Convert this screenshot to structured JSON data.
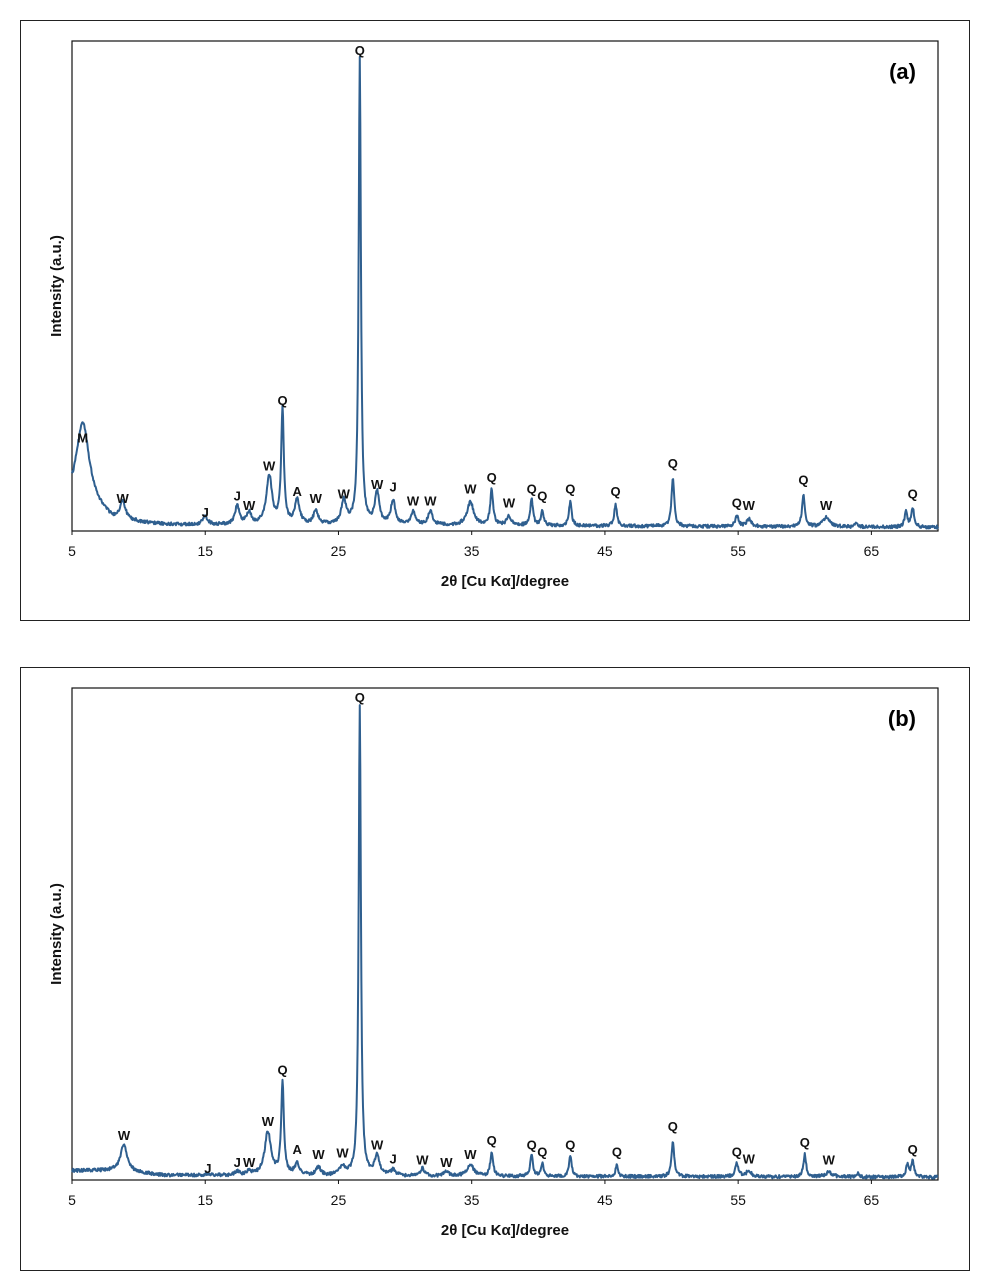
{
  "colors": {
    "pattern": "#2f5f8f",
    "axis": "#111111",
    "frame": "#222222"
  },
  "chart_data": [
    {
      "id": "a",
      "type": "line",
      "panel_label": "(a)",
      "xlabel": "2θ [Cu Kα]/degree",
      "ylabel": "Intensity (a.u.)",
      "xlim": [
        5,
        70
      ],
      "ylim": [
        0,
        105
      ],
      "xticks": [
        5,
        15,
        25,
        35,
        45,
        55,
        65
      ],
      "series": [
        {
          "name": "XRD pattern (a)",
          "background": [
            [
              5,
              6
            ],
            [
              6,
              6
            ],
            [
              8,
              2.2
            ],
            [
              12,
              1.3
            ],
            [
              30,
              1.2
            ],
            [
              70,
              0.8
            ]
          ]
        }
      ],
      "peaks": [
        {
          "label": "M",
          "x": 5.8,
          "y": 17,
          "w": 0.6,
          "ly": 19
        },
        {
          "label": "W",
          "x": 8.8,
          "y": 3.8,
          "w": 0.25,
          "ly": 6
        },
        {
          "label": "J",
          "x": 15.0,
          "y": 1.8,
          "w": 0.2,
          "ly": 3
        },
        {
          "label": "J",
          "x": 17.4,
          "y": 4.0,
          "w": 0.2,
          "ly": 6.5
        },
        {
          "label": "W",
          "x": 18.3,
          "y": 2.6,
          "w": 0.2,
          "ly": 4.5
        },
        {
          "label": "W",
          "x": 19.8,
          "y": 10.5,
          "w": 0.25,
          "ly": 13
        },
        {
          "label": "Q",
          "x": 20.8,
          "y": 24.5,
          "w": 0.12,
          "ly": 27
        },
        {
          "label": "A",
          "x": 21.9,
          "y": 5.2,
          "w": 0.22,
          "ly": 7.5
        },
        {
          "label": "W",
          "x": 23.3,
          "y": 3.0,
          "w": 0.2,
          "ly": 6
        },
        {
          "label": "W",
          "x": 25.4,
          "y": 5.0,
          "w": 0.22,
          "ly": 7
        },
        {
          "label": "Q",
          "x": 26.6,
          "y": 100,
          "w": 0.1,
          "ly": 102
        },
        {
          "label": "W",
          "x": 27.9,
          "y": 6.8,
          "w": 0.2,
          "ly": 9
        },
        {
          "label": "J",
          "x": 29.1,
          "y": 5.2,
          "w": 0.2,
          "ly": 8.5
        },
        {
          "label": "W",
          "x": 30.6,
          "y": 2.8,
          "w": 0.2,
          "ly": 5.5
        },
        {
          "label": "W",
          "x": 31.9,
          "y": 3.0,
          "w": 0.2,
          "ly": 5.5
        },
        {
          "label": "W",
          "x": 34.9,
          "y": 5.0,
          "w": 0.3,
          "ly": 8
        },
        {
          "label": "Q",
          "x": 36.5,
          "y": 7.6,
          "w": 0.13,
          "ly": 10.5
        },
        {
          "label": "W",
          "x": 37.8,
          "y": 2.0,
          "w": 0.2,
          "ly": 5
        },
        {
          "label": "Q",
          "x": 39.5,
          "y": 5.8,
          "w": 0.12,
          "ly": 8
        },
        {
          "label": "Q",
          "x": 40.3,
          "y": 3.2,
          "w": 0.12,
          "ly": 6.5
        },
        {
          "label": "Q",
          "x": 42.4,
          "y": 5.2,
          "w": 0.12,
          "ly": 8
        },
        {
          "label": "Q",
          "x": 45.8,
          "y": 4.6,
          "w": 0.12,
          "ly": 7.5
        },
        {
          "label": "Q",
          "x": 50.1,
          "y": 10.5,
          "w": 0.12,
          "ly": 13.5
        },
        {
          "label": "Q",
          "x": 54.9,
          "y": 2.2,
          "w": 0.15,
          "ly": 5
        },
        {
          "label": "W",
          "x": 55.8,
          "y": 1.6,
          "w": 0.2,
          "ly": 4.5
        },
        {
          "label": "Q",
          "x": 59.9,
          "y": 7.0,
          "w": 0.12,
          "ly": 10
        },
        {
          "label": "W",
          "x": 61.6,
          "y": 2.0,
          "w": 0.3,
          "ly": 4.5
        },
        {
          "label": "",
          "x": 63.9,
          "y": 0.8,
          "w": 0.12,
          "ly": 0
        },
        {
          "label": "",
          "x": 67.6,
          "y": 3.2,
          "w": 0.12,
          "ly": 0
        },
        {
          "label": "Q",
          "x": 68.1,
          "y": 4.2,
          "w": 0.12,
          "ly": 7
        }
      ]
    },
    {
      "id": "b",
      "type": "line",
      "panel_label": "(b)",
      "xlabel": "2θ [Cu Kα]/degree",
      "ylabel": "Intensity (a.u.)",
      "xlim": [
        5,
        70
      ],
      "ylim": [
        0,
        105
      ],
      "xticks": [
        5,
        15,
        25,
        35,
        45,
        55,
        65
      ],
      "series": [
        {
          "name": "XRD pattern (b)",
          "background": [
            [
              5,
              2.0
            ],
            [
              8,
              2.0
            ],
            [
              12,
              1.0
            ],
            [
              30,
              0.8
            ],
            [
              70,
              0.6
            ]
          ]
        }
      ],
      "peaks": [
        {
          "label": "W",
          "x": 8.9,
          "y": 5.8,
          "w": 0.3,
          "ly": 8.5
        },
        {
          "label": "J",
          "x": 15.2,
          "y": 0.4,
          "w": 0.2,
          "ly": 1.5
        },
        {
          "label": "J",
          "x": 17.4,
          "y": 0.8,
          "w": 0.2,
          "ly": 2.8
        },
        {
          "label": "W",
          "x": 18.3,
          "y": 0.8,
          "w": 0.2,
          "ly": 2.8
        },
        {
          "label": "W",
          "x": 19.7,
          "y": 9.3,
          "w": 0.28,
          "ly": 11.5
        },
        {
          "label": "Q",
          "x": 20.8,
          "y": 19.8,
          "w": 0.12,
          "ly": 22.5
        },
        {
          "label": "A",
          "x": 21.9,
          "y": 2.4,
          "w": 0.22,
          "ly": 5.5
        },
        {
          "label": "W",
          "x": 23.5,
          "y": 1.8,
          "w": 0.2,
          "ly": 4.5
        },
        {
          "label": "W",
          "x": 25.3,
          "y": 2.0,
          "w": 0.22,
          "ly": 4.8
        },
        {
          "label": "Q",
          "x": 26.6,
          "y": 100,
          "w": 0.1,
          "ly": 102
        },
        {
          "label": "W",
          "x": 27.9,
          "y": 4.2,
          "w": 0.22,
          "ly": 6.5
        },
        {
          "label": "J",
          "x": 29.1,
          "y": 1.2,
          "w": 0.2,
          "ly": 3.5
        },
        {
          "label": "W",
          "x": 31.3,
          "y": 1.6,
          "w": 0.2,
          "ly": 3.3
        },
        {
          "label": "W",
          "x": 33.1,
          "y": 1.0,
          "w": 0.2,
          "ly": 2.8
        },
        {
          "label": "W",
          "x": 34.9,
          "y": 2.5,
          "w": 0.3,
          "ly": 4.5
        },
        {
          "label": "Q",
          "x": 36.5,
          "y": 4.8,
          "w": 0.13,
          "ly": 7.5
        },
        {
          "label": "Q",
          "x": 39.5,
          "y": 4.6,
          "w": 0.12,
          "ly": 6.5
        },
        {
          "label": "Q",
          "x": 40.3,
          "y": 2.6,
          "w": 0.12,
          "ly": 5
        },
        {
          "label": "Q",
          "x": 42.4,
          "y": 4.4,
          "w": 0.12,
          "ly": 6.5
        },
        {
          "label": "Q",
          "x": 45.9,
          "y": 2.4,
          "w": 0.12,
          "ly": 5
        },
        {
          "label": "Q",
          "x": 50.1,
          "y": 7.6,
          "w": 0.12,
          "ly": 10.5
        },
        {
          "label": "Q",
          "x": 54.9,
          "y": 2.8,
          "w": 0.15,
          "ly": 5
        },
        {
          "label": "W",
          "x": 55.8,
          "y": 1.4,
          "w": 0.2,
          "ly": 3.5
        },
        {
          "label": "Q",
          "x": 60.0,
          "y": 4.8,
          "w": 0.12,
          "ly": 7
        },
        {
          "label": "W",
          "x": 61.8,
          "y": 1.0,
          "w": 0.3,
          "ly": 3.3
        },
        {
          "label": "",
          "x": 64.0,
          "y": 0.8,
          "w": 0.12,
          "ly": 0
        },
        {
          "label": "",
          "x": 67.7,
          "y": 2.6,
          "w": 0.12,
          "ly": 0
        },
        {
          "label": "Q",
          "x": 68.1,
          "y": 3.4,
          "w": 0.12,
          "ly": 5.5
        }
      ]
    }
  ]
}
